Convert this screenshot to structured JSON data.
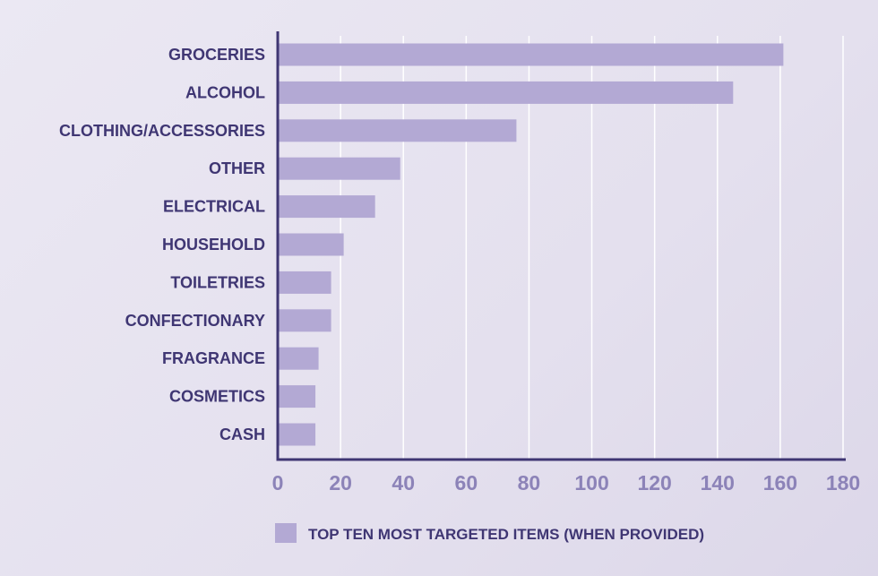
{
  "chart_data": {
    "type": "bar",
    "orientation": "horizontal",
    "title": "",
    "xlabel": "",
    "ylabel": "",
    "categories": [
      "GROCERIES",
      "ALCOHOL",
      "CLOTHING/ACCESSORIES",
      "OTHER",
      "ELECTRICAL",
      "HOUSEHOLD",
      "TOILETRIES",
      "CONFECTIONARY",
      "FRAGRANCE",
      "COSMETICS",
      "CASH"
    ],
    "series": [
      {
        "name": "TOP TEN MOST TARGETED ITEMS (WHEN PROVIDED)",
        "values": [
          161,
          145,
          76,
          39,
          31,
          21,
          17,
          17,
          13,
          12,
          12
        ]
      }
    ],
    "xlim": [
      0,
      180
    ],
    "xticks": [
      "0",
      "20",
      "40",
      "60",
      "80",
      "100",
      "120",
      "140",
      "160",
      "180"
    ],
    "grid": true,
    "legend": "bottom",
    "colors": {
      "bar": "#b3a9d4",
      "axis": "#3f3673",
      "grid": "#ffffff",
      "tick": "#8c83b8"
    }
  }
}
